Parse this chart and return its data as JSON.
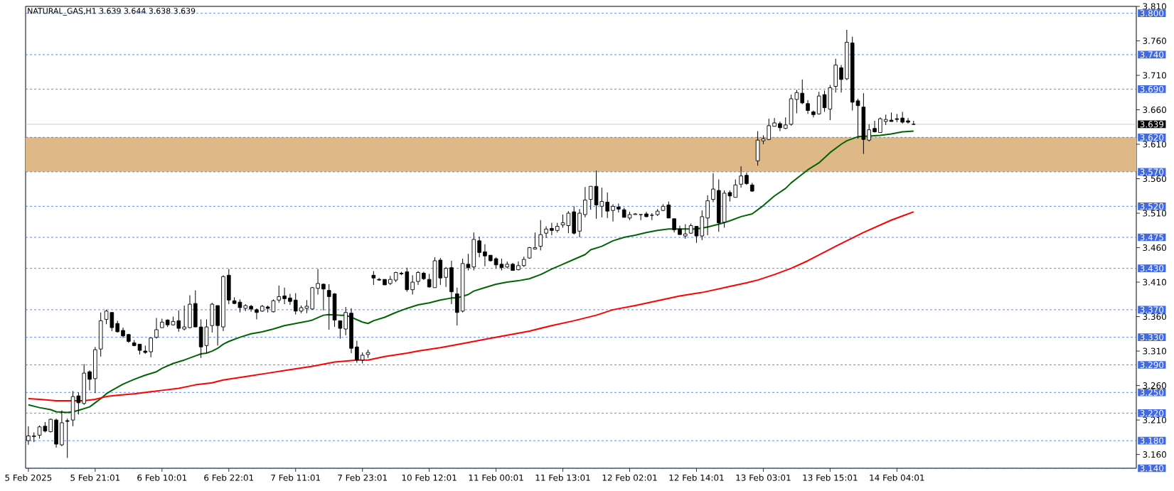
{
  "chart_data": {
    "type": "candlestick",
    "title": "NATURAL_GAS,H1  3.639 3.644 3.638 3.639",
    "categories": [
      "5 Feb 2025",
      null,
      null,
      null,
      null,
      null,
      null,
      null,
      null,
      null,
      null,
      null,
      "5 Feb 21:01",
      null,
      null,
      null,
      null,
      null,
      null,
      null,
      null,
      null,
      null,
      null,
      "6 Feb 10:01",
      null,
      null,
      null,
      null,
      null,
      null,
      null,
      null,
      null,
      null,
      null,
      "6 Feb 22:01",
      null,
      null,
      null,
      null,
      null,
      null,
      null,
      null,
      null,
      null,
      null,
      "7 Feb 11:01",
      null,
      null,
      null,
      null,
      null,
      null,
      null,
      null,
      null,
      null,
      null,
      "7 Feb 23:01",
      null,
      null,
      null,
      null,
      null,
      null,
      null,
      null,
      null,
      null,
      null,
      "10 Feb 12:01",
      null,
      null,
      null,
      null,
      null,
      null,
      null,
      null,
      null,
      null,
      null,
      "11 Feb 00:01",
      null,
      null,
      null,
      null,
      null,
      null,
      null,
      null,
      null,
      null,
      null,
      "11 Feb 13:01",
      null,
      null,
      null,
      null,
      null,
      null,
      null,
      null,
      null,
      null,
      null,
      "12 Feb 02:01",
      null,
      null,
      null,
      null,
      null,
      null,
      null,
      null,
      null,
      null,
      null,
      "12 Feb 14:01",
      null,
      null,
      null,
      null,
      null,
      null,
      null,
      null,
      null,
      null,
      null,
      "13 Feb 03:01",
      null,
      null,
      null,
      null,
      null,
      null,
      null,
      null,
      null,
      null,
      null,
      "13 Feb 15:01",
      null,
      null,
      null,
      null,
      null,
      null,
      null,
      null,
      null,
      null,
      null,
      "14 Feb 04:01",
      null,
      null,
      null
    ],
    "ohlc": [
      [
        3.18,
        3.201,
        3.174,
        3.187
      ],
      [
        3.186,
        3.192,
        3.178,
        3.187
      ],
      [
        3.188,
        3.202,
        3.183,
        3.2
      ],
      [
        3.201,
        3.207,
        3.192,
        3.194
      ],
      [
        3.193,
        3.212,
        3.192,
        3.211
      ],
      [
        3.21,
        3.212,
        3.17,
        3.175
      ],
      [
        3.174,
        3.224,
        3.172,
        3.206
      ],
      [
        3.209,
        3.212,
        3.155,
        3.208
      ],
      [
        3.21,
        3.252,
        3.201,
        3.244
      ],
      [
        3.245,
        3.25,
        3.218,
        3.235
      ],
      [
        3.234,
        3.291,
        3.232,
        3.278
      ],
      [
        3.28,
        3.282,
        3.253,
        3.269
      ],
      [
        3.27,
        3.316,
        3.249,
        3.312
      ],
      [
        3.313,
        3.366,
        3.302,
        3.354
      ],
      [
        3.356,
        3.37,
        3.349,
        3.368
      ],
      [
        3.366,
        3.366,
        3.339,
        3.344
      ],
      [
        3.35,
        3.354,
        3.337,
        3.338
      ],
      [
        3.34,
        3.344,
        3.329,
        3.332
      ],
      [
        3.334,
        3.335,
        3.322,
        3.324
      ],
      [
        3.322,
        3.326,
        3.317,
        3.318
      ],
      [
        3.32,
        3.32,
        3.305,
        3.311
      ],
      [
        3.31,
        3.318,
        3.306,
        3.308
      ],
      [
        3.309,
        3.329,
        3.301,
        3.329
      ],
      [
        3.33,
        3.358,
        3.328,
        3.341
      ],
      [
        3.344,
        3.357,
        3.344,
        3.352
      ],
      [
        3.355,
        3.356,
        3.345,
        3.348
      ],
      [
        3.348,
        3.36,
        3.347,
        3.353
      ],
      [
        3.354,
        3.369,
        3.338,
        3.343
      ],
      [
        3.342,
        3.376,
        3.34,
        3.345
      ],
      [
        3.344,
        3.391,
        3.343,
        3.378
      ],
      [
        3.379,
        3.398,
        3.345,
        3.345
      ],
      [
        3.345,
        3.356,
        3.3,
        3.316
      ],
      [
        3.318,
        3.356,
        3.307,
        3.345
      ],
      [
        3.347,
        3.38,
        3.337,
        3.378
      ],
      [
        3.376,
        3.376,
        3.318,
        3.347
      ],
      [
        3.345,
        3.42,
        3.339,
        3.418
      ],
      [
        3.42,
        3.429,
        3.378,
        3.384
      ],
      [
        3.383,
        3.388,
        3.378,
        3.379
      ],
      [
        3.381,
        3.385,
        3.366,
        3.373
      ],
      [
        3.372,
        3.378,
        3.368,
        3.376
      ],
      [
        3.375,
        3.377,
        3.367,
        3.371
      ],
      [
        3.37,
        3.372,
        3.356,
        3.366
      ],
      [
        3.368,
        3.377,
        3.367,
        3.375
      ],
      [
        3.374,
        3.376,
        3.366,
        3.372
      ],
      [
        3.367,
        3.385,
        3.366,
        3.383
      ],
      [
        3.384,
        3.405,
        3.38,
        3.389
      ],
      [
        3.39,
        3.402,
        3.378,
        3.386
      ],
      [
        3.387,
        3.393,
        3.377,
        3.382
      ],
      [
        3.384,
        3.394,
        3.363,
        3.368
      ],
      [
        3.368,
        3.376,
        3.365,
        3.373
      ],
      [
        3.372,
        3.384,
        3.365,
        3.375
      ],
      [
        3.371,
        3.403,
        3.37,
        3.402
      ],
      [
        3.401,
        3.429,
        3.392,
        3.408
      ],
      [
        3.407,
        3.408,
        3.369,
        3.4
      ],
      [
        3.398,
        3.407,
        3.341,
        3.389
      ],
      [
        3.393,
        3.394,
        3.345,
        3.355
      ],
      [
        3.354,
        3.354,
        3.328,
        3.343
      ],
      [
        3.342,
        3.374,
        3.333,
        3.366
      ],
      [
        3.365,
        3.372,
        3.307,
        3.314
      ],
      [
        3.316,
        3.325,
        3.293,
        3.297
      ],
      [
        3.297,
        3.308,
        3.292,
        3.304
      ],
      [
        3.305,
        3.312,
        3.3,
        3.308
      ],
      [
        3.42,
        3.426,
        3.406,
        3.416
      ],
      [
        3.414,
        3.416,
        3.412,
        3.413
      ],
      [
        3.414,
        3.414,
        3.406,
        3.406
      ],
      [
        3.408,
        3.419,
        3.406,
        3.414
      ],
      [
        3.413,
        3.425,
        3.41,
        3.424
      ],
      [
        3.423,
        3.425,
        3.42,
        3.422
      ],
      [
        3.425,
        3.431,
        3.396,
        3.399
      ],
      [
        3.399,
        3.42,
        3.392,
        3.41
      ],
      [
        3.411,
        3.426,
        3.406,
        3.424
      ],
      [
        3.423,
        3.425,
        3.413,
        3.415
      ],
      [
        3.414,
        3.422,
        3.402,
        3.403
      ],
      [
        3.402,
        3.446,
        3.402,
        3.441
      ],
      [
        3.442,
        3.445,
        3.406,
        3.416
      ],
      [
        3.417,
        3.432,
        3.403,
        3.43
      ],
      [
        3.431,
        3.441,
        3.378,
        3.396
      ],
      [
        3.393,
        3.402,
        3.347,
        3.366
      ],
      [
        3.368,
        3.444,
        3.366,
        3.437
      ],
      [
        3.436,
        3.451,
        3.427,
        3.431
      ],
      [
        3.432,
        3.482,
        3.427,
        3.472
      ],
      [
        3.47,
        3.476,
        3.446,
        3.453
      ],
      [
        3.454,
        3.465,
        3.433,
        3.448
      ],
      [
        3.449,
        3.449,
        3.44,
        3.441
      ],
      [
        3.444,
        3.446,
        3.43,
        3.435
      ],
      [
        3.436,
        3.444,
        3.427,
        3.431
      ],
      [
        3.432,
        3.44,
        3.43,
        3.436
      ],
      [
        3.436,
        3.438,
        3.427,
        3.427
      ],
      [
        3.428,
        3.44,
        3.427,
        3.434
      ],
      [
        3.434,
        3.447,
        3.432,
        3.443
      ],
      [
        3.445,
        3.461,
        3.444,
        3.46
      ],
      [
        3.458,
        3.482,
        3.458,
        3.46
      ],
      [
        3.462,
        3.5,
        3.456,
        3.479
      ],
      [
        3.481,
        3.491,
        3.474,
        3.487
      ],
      [
        3.488,
        3.496,
        3.478,
        3.485
      ],
      [
        3.485,
        3.496,
        3.482,
        3.491
      ],
      [
        3.493,
        3.508,
        3.489,
        3.496
      ],
      [
        3.492,
        3.513,
        3.481,
        3.51
      ],
      [
        3.512,
        3.52,
        3.479,
        3.481
      ],
      [
        3.484,
        3.516,
        3.475,
        3.51
      ],
      [
        3.508,
        3.548,
        3.504,
        3.529
      ],
      [
        3.53,
        3.549,
        3.515,
        3.549
      ],
      [
        3.549,
        3.572,
        3.502,
        3.522
      ],
      [
        3.52,
        3.547,
        3.504,
        3.527
      ],
      [
        3.526,
        3.54,
        3.503,
        3.513
      ],
      [
        3.514,
        3.523,
        3.498,
        3.52
      ],
      [
        3.519,
        3.524,
        3.511,
        3.516
      ],
      [
        3.515,
        3.518,
        3.504,
        3.504
      ],
      [
        3.503,
        3.512,
        3.5,
        3.508
      ],
      [
        3.508,
        3.51,
        3.508,
        3.509
      ],
      [
        3.508,
        3.508,
        3.5,
        3.508
      ],
      [
        3.509,
        3.512,
        3.504,
        3.505
      ],
      [
        3.507,
        3.51,
        3.5,
        3.507
      ],
      [
        3.508,
        3.516,
        3.506,
        3.513
      ],
      [
        3.514,
        3.523,
        3.513,
        3.52
      ],
      [
        3.522,
        3.527,
        3.503,
        3.503
      ],
      [
        3.502,
        3.502,
        3.482,
        3.486
      ],
      [
        3.487,
        3.492,
        3.479,
        3.479
      ],
      [
        3.477,
        3.494,
        3.473,
        3.48
      ],
      [
        3.481,
        3.495,
        3.48,
        3.492
      ],
      [
        3.491,
        3.491,
        3.467,
        3.477
      ],
      [
        3.477,
        3.514,
        3.471,
        3.505
      ],
      [
        3.503,
        3.536,
        3.478,
        3.528
      ],
      [
        3.53,
        3.568,
        3.526,
        3.545
      ],
      [
        3.543,
        3.559,
        3.483,
        3.496
      ],
      [
        3.497,
        3.543,
        3.489,
        3.539
      ],
      [
        3.54,
        3.543,
        3.527,
        3.535
      ],
      [
        3.533,
        3.559,
        3.533,
        3.551
      ],
      [
        3.552,
        3.578,
        3.547,
        3.564
      ],
      [
        3.565,
        3.569,
        3.551,
        3.553
      ],
      [
        3.551,
        3.554,
        3.541,
        3.542
      ],
      [
        3.586,
        3.629,
        3.579,
        3.616
      ],
      [
        3.615,
        3.623,
        3.61,
        3.618
      ],
      [
        3.617,
        3.647,
        3.616,
        3.637
      ],
      [
        3.636,
        3.648,
        3.636,
        3.641
      ],
      [
        3.64,
        3.643,
        3.629,
        3.634
      ],
      [
        3.633,
        3.649,
        3.632,
        3.638
      ],
      [
        3.639,
        3.682,
        3.637,
        3.676
      ],
      [
        3.675,
        3.689,
        3.655,
        3.685
      ],
      [
        3.684,
        3.704,
        3.668,
        3.67
      ],
      [
        3.669,
        3.674,
        3.654,
        3.659
      ],
      [
        3.657,
        3.659,
        3.649,
        3.653
      ],
      [
        3.654,
        3.686,
        3.653,
        3.68
      ],
      [
        3.682,
        3.688,
        3.657,
        3.663
      ],
      [
        3.661,
        3.696,
        3.645,
        3.692
      ],
      [
        3.694,
        3.734,
        3.685,
        3.725
      ],
      [
        3.721,
        3.725,
        3.685,
        3.704
      ],
      [
        3.705,
        3.776,
        3.703,
        3.758
      ],
      [
        3.757,
        3.766,
        3.659,
        3.671
      ],
      [
        3.673,
        3.676,
        3.618,
        3.666
      ],
      [
        3.664,
        3.684,
        3.596,
        3.617
      ],
      [
        3.616,
        3.639,
        3.614,
        3.631
      ],
      [
        3.633,
        3.644,
        3.627,
        3.628
      ],
      [
        3.627,
        3.649,
        3.627,
        3.647
      ],
      [
        3.643,
        3.653,
        3.638,
        3.646
      ],
      [
        3.645,
        3.656,
        3.643,
        3.643
      ],
      [
        3.647,
        3.654,
        3.642,
        3.646
      ],
      [
        3.648,
        3.657,
        3.64,
        3.642
      ],
      [
        3.644,
        3.648,
        3.64,
        3.642
      ],
      [
        3.639,
        3.644,
        3.638,
        3.639
      ]
    ],
    "series": [
      {
        "type": "line",
        "color": "#006400",
        "values": [
          3.232,
          null,
          3.228,
          null,
          3.225,
          3.222,
          null,
          3.221,
          3.222,
          3.224,
          null,
          3.229,
          3.235,
          3.241,
          3.248,
          3.253,
          null,
          3.262,
          null,
          3.269,
          null,
          3.275,
          null,
          3.28,
          3.285,
          null,
          3.292,
          null,
          3.297,
          null,
          3.303,
          3.306,
          3.307,
          3.31,
          3.314,
          3.32,
          3.324,
          null,
          3.33,
          null,
          3.335,
          null,
          3.338,
          null,
          3.342,
          null,
          3.347,
          null,
          3.35,
          null,
          3.353,
          3.355,
          null,
          3.362,
          3.363,
          null,
          3.362,
          3.362,
          3.359,
          null,
          3.352,
          3.35,
          3.354,
          null,
          3.359,
          null,
          3.366,
          null,
          3.372,
          null,
          3.377,
          null,
          3.38,
          null,
          3.384,
          null,
          3.387,
          3.387,
          null,
          3.392,
          3.397,
          null,
          3.402,
          null,
          3.407,
          null,
          3.41,
          null,
          3.412,
          null,
          3.415,
          null,
          3.421,
          null,
          3.429,
          null,
          3.436,
          null,
          3.443,
          null,
          3.45,
          3.457,
          null,
          3.462,
          null,
          3.47,
          null,
          3.475,
          null,
          3.478,
          null,
          3.482,
          null,
          3.485,
          null,
          3.487,
          3.487,
          null,
          3.487,
          null,
          3.487,
          null,
          3.49,
          null,
          3.494,
          null,
          3.499,
          null,
          3.505,
          null,
          3.509,
          null,
          3.521,
          null,
          3.535,
          null,
          3.546,
          3.554,
          null,
          null,
          3.573,
          null,
          3.583,
          null,
          3.598,
          null,
          3.61,
          3.615,
          3.618,
          3.621,
          null,
          3.622,
          null,
          3.623,
          null,
          3.625,
          null,
          3.628,
          null,
          3.629
        ]
      },
      {
        "type": "line",
        "color": "#ff0000",
        "values": [
          3.241,
          null,
          3.24,
          null,
          null,
          3.238,
          null,
          null,
          3.238,
          null,
          3.238,
          null,
          3.24,
          null,
          3.244,
          null,
          3.246,
          null,
          null,
          3.248,
          null,
          null,
          3.251,
          null,
          3.253,
          null,
          null,
          3.256,
          null,
          null,
          3.261,
          null,
          null,
          3.264,
          null,
          3.268,
          null,
          null,
          null,
          3.273,
          null,
          null,
          null,
          3.278,
          null,
          null,
          null,
          3.283,
          null,
          null,
          null,
          3.288,
          null,
          null,
          null,
          3.294,
          null,
          null,
          null,
          3.297,
          null,
          3.297,
          null,
          null,
          3.302,
          null,
          null,
          null,
          3.307,
          null,
          3.31,
          null,
          null,
          null,
          3.315,
          null,
          null,
          null,
          3.321,
          null,
          null,
          null,
          3.327,
          null,
          null,
          null,
          3.333,
          null,
          null,
          null,
          3.339,
          null,
          null,
          null,
          3.347,
          null,
          null,
          null,
          3.354,
          null,
          null,
          null,
          3.362,
          null,
          null,
          3.37,
          null,
          null,
          null,
          3.376,
          null,
          null,
          null,
          3.383,
          null,
          null,
          null,
          3.39,
          null,
          null,
          null,
          3.395,
          null,
          null,
          null,
          3.402,
          null,
          null,
          null,
          3.409,
          null,
          3.413,
          null,
          null,
          3.421,
          null,
          null,
          3.43,
          null,
          null,
          3.441,
          null,
          null,
          null,
          null,
          3.462,
          null,
          null,
          null,
          null,
          3.482,
          null,
          null,
          null,
          null,
          3.5,
          null,
          null,
          null,
          3.512
        ]
      }
    ],
    "ylim": [
      3.14,
      3.81
    ],
    "yticks": [
      {
        "value": 3.16,
        "label": "3.160"
      },
      {
        "value": 3.21,
        "label": "3.210"
      },
      {
        "value": 3.26,
        "label": "3.260"
      },
      {
        "value": 3.31,
        "label": "3.310"
      },
      {
        "value": 3.36,
        "label": "3.360"
      },
      {
        "value": 3.41,
        "label": "3.410"
      },
      {
        "value": 3.46,
        "label": "3.460"
      },
      {
        "value": 3.51,
        "label": "3.510"
      },
      {
        "value": 3.56,
        "label": "3.560"
      },
      {
        "value": 3.61,
        "label": "3.610"
      },
      {
        "value": 3.66,
        "label": "3.660"
      },
      {
        "value": 3.71,
        "label": "3.710"
      },
      {
        "value": 3.76,
        "label": "3.760"
      },
      {
        "value": 3.81,
        "label": "3.810"
      }
    ],
    "bands": [
      {
        "axis": "y",
        "from": 3.57,
        "to": 3.62,
        "color": "#deb887"
      }
    ],
    "ref_lines": [
      {
        "axis": "y",
        "value": 3.8,
        "label": "3.800",
        "color": "#4169e1",
        "line_style": "dashed"
      },
      {
        "axis": "y",
        "value": 3.74,
        "label": "3.740",
        "color": "#4169e1",
        "line_style": "dashed"
      },
      {
        "axis": "y",
        "value": 3.69,
        "label": "3.690",
        "color": "#4169e1",
        "line_style": "dashed"
      },
      {
        "axis": "y",
        "value": 3.639,
        "label": "3.639",
        "color": "#c0c0c0",
        "line_style": "solid"
      },
      {
        "axis": "y",
        "value": 3.62,
        "label": "3.620",
        "color": "#4169e1",
        "line_style": "dashed"
      },
      {
        "axis": "y",
        "value": 3.57,
        "label": "3.570",
        "color": "#4169e1",
        "line_style": "dashed"
      },
      {
        "axis": "y",
        "value": 3.52,
        "label": "3.520",
        "color": "#4169e1",
        "line_style": "dashed"
      },
      {
        "axis": "y",
        "value": 3.475,
        "label": "3.475",
        "color": "#4169e1",
        "line_style": "dashed"
      },
      {
        "axis": "y",
        "value": 3.43,
        "label": "3.430",
        "color": "#4169e1",
        "line_style": "dashed"
      },
      {
        "axis": "y",
        "value": 3.37,
        "label": "3.370",
        "color": "#4169e1",
        "line_style": "dashed"
      },
      {
        "axis": "y",
        "value": 3.33,
        "label": "3.330",
        "color": "#4169e1",
        "line_style": "dashed"
      },
      {
        "axis": "y",
        "value": 3.29,
        "label": "3.290",
        "color": "#4169e1",
        "line_style": "dashed"
      },
      {
        "axis": "y",
        "value": 3.25,
        "label": "3.250",
        "color": "#4169e1",
        "line_style": "dashed"
      },
      {
        "axis": "y",
        "value": 3.22,
        "label": "3.220",
        "color": "#4169e1",
        "line_style": "dashed"
      },
      {
        "axis": "y",
        "value": 3.18,
        "label": "3.180",
        "color": "#4169e1",
        "line_style": "dashed"
      },
      {
        "axis": "y",
        "value": 3.14,
        "label": "3.140",
        "color": "#4169e1",
        "line_style": "dashed"
      }
    ]
  }
}
